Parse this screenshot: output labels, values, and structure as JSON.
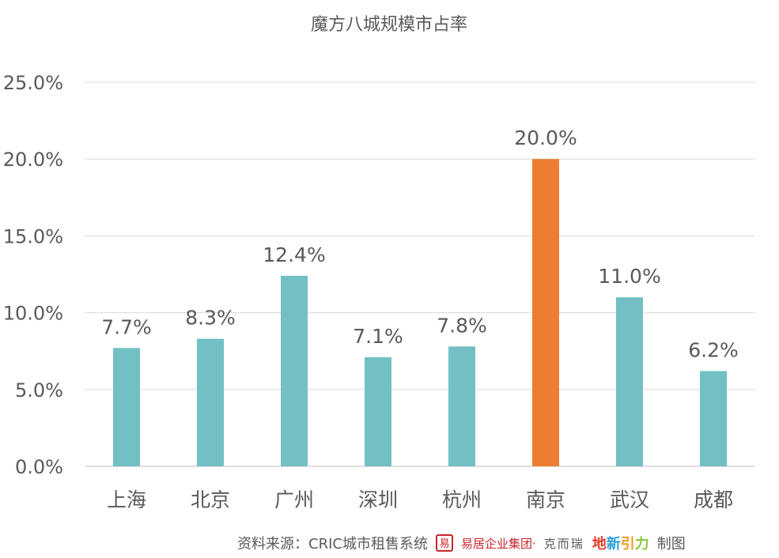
{
  "chart_data": {
    "type": "bar",
    "title": "魔方八城规模市占率",
    "categories": [
      "上海",
      "北京",
      "广州",
      "深圳",
      "杭州",
      "南京",
      "武汉",
      "成都"
    ],
    "values": [
      7.7,
      8.3,
      12.4,
      7.1,
      7.8,
      20.0,
      11.0,
      6.2
    ],
    "data_labels": [
      "7.7%",
      "8.3%",
      "12.4%",
      "7.1%",
      "7.8%",
      "20.0%",
      "11.0%",
      "6.2%"
    ],
    "yticks": [
      "0.0%",
      "5.0%",
      "10.0%",
      "15.0%",
      "20.0%",
      "25.0%"
    ],
    "ylim": [
      0,
      25
    ],
    "grid": true,
    "colors": {
      "default": "#72bfc4",
      "highlight": "#ed7d31"
    },
    "highlight_category": "南京"
  },
  "footer": {
    "source": "资料来源：CRIC城市租售系统",
    "seal": "易",
    "brand_a": "易居企业集团·",
    "brand_b": "克而瑞",
    "brand_c": [
      "地",
      "新",
      "引",
      "力"
    ],
    "suffix": "制图"
  }
}
